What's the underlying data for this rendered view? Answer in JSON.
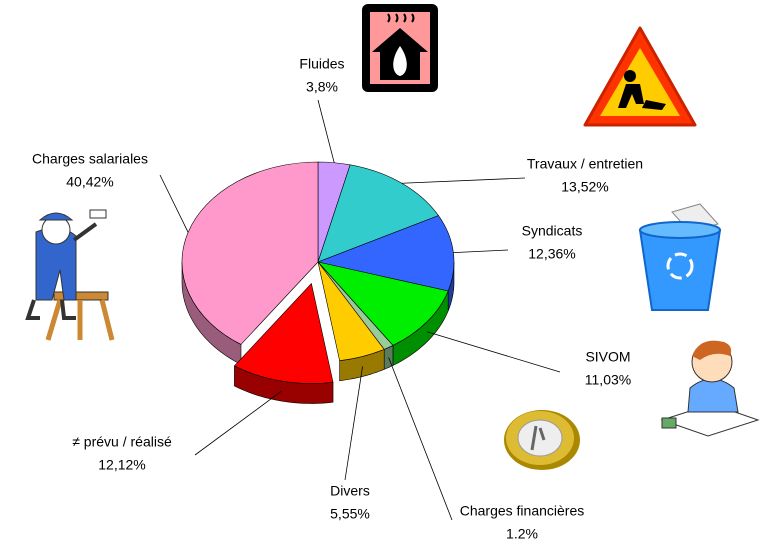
{
  "chart_data": {
    "type": "pie3d",
    "categories": [
      "Fluides",
      "Travaux / entretien",
      "Syndicats",
      "SIVOM",
      "Charges financières",
      "Divers",
      "≠ prévu / réalisé",
      "Charges salariales"
    ],
    "values": [
      3.8,
      13.52,
      12.36,
      11.03,
      1.2,
      5.55,
      12.12,
      40.42
    ],
    "value_labels": [
      "3,8%",
      "13,52%",
      "12,36%",
      "11,03%",
      "1.2%",
      "5,55%",
      "12,12%",
      "40,42%"
    ],
    "colors": [
      "#cc99ff",
      "#33cccc",
      "#3366ff",
      "#00ee00",
      "#99cc99",
      "#ffcc00",
      "#ff0000",
      "#ff99cc"
    ]
  }
}
